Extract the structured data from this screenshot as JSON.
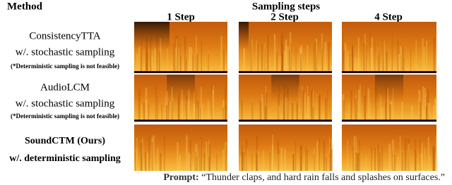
{
  "header": {
    "method": "Method",
    "sampling_steps": "Sampling steps",
    "columns": [
      "1 Step",
      "2 Step",
      "4 Step"
    ]
  },
  "rows": [
    {
      "name": "ConsistencyTTA",
      "sampling": "w/. stochastic sampling",
      "note": "(*Deterministic sampling is not feasible)"
    },
    {
      "name": "AudioLCM",
      "sampling": "w/. stochastic sampling",
      "note": "(*Deterministic sampling is not feasible)"
    },
    {
      "name": "SoundCTM (Ours)",
      "sampling": "w/. deterministic sampling"
    }
  ],
  "prompt": {
    "label": "Prompt:",
    "text": "“Thunder claps, and hard rain falls and splashes on surfaces.”"
  }
}
